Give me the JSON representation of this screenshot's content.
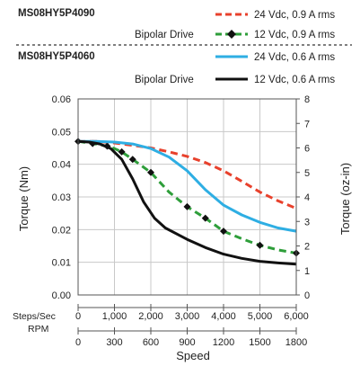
{
  "legend": {
    "group1": {
      "model": "MS08HY5P4090",
      "drive": "Bipolar Drive",
      "entries": [
        {
          "label": "24 Vdc, 0.9 A rms",
          "color": "#e8412c",
          "dash": "dashed",
          "marker": "none"
        },
        {
          "label": "12 Vdc, 0.9 A rms",
          "color": "#2e9e3a",
          "dash": "dashed",
          "marker": "diamond"
        }
      ]
    },
    "group2": {
      "model": "MS08HY5P4060",
      "drive": "Bipolar Drive",
      "entries": [
        {
          "label": "24 Vdc, 0.6 A rms",
          "color": "#2eaee3",
          "dash": "solid",
          "marker": "none"
        },
        {
          "label": "12 Vdc, 0.6 A rms",
          "color": "#111111",
          "dash": "solid",
          "marker": "none"
        }
      ]
    }
  },
  "chart_data": {
    "type": "line",
    "xlabel": "Speed",
    "ylabel_left": "Torque (Nm)",
    "ylabel_right": "Torque (oz-in)",
    "x_axis_rows": [
      {
        "label": "Steps/Sec",
        "ticks": [
          "0",
          "1,000",
          "2,000",
          "3,000",
          "4,000",
          "5,000",
          "6,000"
        ]
      },
      {
        "label": "RPM",
        "ticks": [
          "0",
          "300",
          "600",
          "900",
          "1200",
          "1500",
          "1800"
        ]
      }
    ],
    "xlim": [
      0,
      6000
    ],
    "ylim_left": [
      0,
      0.06
    ],
    "ylim_right": [
      0,
      8
    ],
    "y_ticks_left": [
      "0.00",
      "0.01",
      "0.02",
      "0.03",
      "0.04",
      "0.05",
      "0.06"
    ],
    "y_ticks_right": [
      "0",
      "1",
      "2",
      "3",
      "4",
      "5",
      "6",
      "7",
      "8"
    ],
    "grid": true,
    "series": [
      {
        "name": "24 Vdc, 0.9 A rms",
        "color": "#e8412c",
        "dash": "dashed",
        "x": [
          0,
          500,
          1000,
          1500,
          2000,
          2500,
          3000,
          3500,
          4000,
          4500,
          5000,
          5500,
          6000
        ],
        "y": [
          0.047,
          0.047,
          0.0465,
          0.0458,
          0.045,
          0.0438,
          0.0424,
          0.0405,
          0.038,
          0.0348,
          0.0315,
          0.0288,
          0.0265
        ]
      },
      {
        "name": "12 Vdc, 0.9 A rms",
        "color": "#2e9e3a",
        "dash": "dashed",
        "marker": "diamond",
        "x": [
          0,
          300,
          600,
          900,
          1200,
          1500,
          2000,
          2500,
          3000,
          3500,
          4000,
          4500,
          5000,
          5500,
          6000
        ],
        "y": [
          0.047,
          0.0465,
          0.046,
          0.0453,
          0.0438,
          0.0415,
          0.0375,
          0.0315,
          0.027,
          0.0235,
          0.0195,
          0.0172,
          0.0152,
          0.0138,
          0.0128
        ]
      },
      {
        "name": "24 Vdc, 0.6 A rms",
        "color": "#2eaee3",
        "dash": "solid",
        "x": [
          0,
          500,
          1000,
          1500,
          2000,
          2500,
          3000,
          3500,
          4000,
          4500,
          5000,
          5500,
          6000
        ],
        "y": [
          0.047,
          0.047,
          0.0468,
          0.0462,
          0.0448,
          0.0422,
          0.038,
          0.0322,
          0.0275,
          0.0245,
          0.0222,
          0.0205,
          0.0195
        ]
      },
      {
        "name": "12 Vdc, 0.6 A rms",
        "color": "#111111",
        "dash": "solid",
        "x": [
          0,
          300,
          600,
          900,
          1200,
          1500,
          1800,
          2100,
          2400,
          3000,
          3500,
          4000,
          4500,
          5000,
          5500,
          6000
        ],
        "y": [
          0.047,
          0.0468,
          0.0462,
          0.0448,
          0.0415,
          0.0355,
          0.0285,
          0.0235,
          0.0205,
          0.017,
          0.0145,
          0.0125,
          0.0112,
          0.0103,
          0.0098,
          0.0094
        ]
      }
    ],
    "markers_x": [
      0,
      400,
      800,
      1200,
      1500,
      2000,
      3000,
      3500,
      4000,
      5000,
      6000
    ]
  }
}
